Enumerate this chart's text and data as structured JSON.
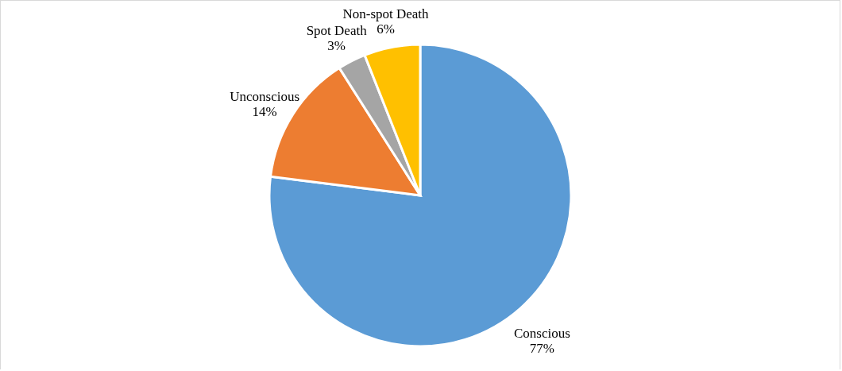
{
  "chart_data": {
    "type": "pie",
    "categories": [
      "Conscious",
      "Unconscious",
      "Spot Death",
      "Non-spot Death"
    ],
    "values": [
      77,
      14,
      3,
      6
    ],
    "colors": [
      "#5b9bd5",
      "#ed7d31",
      "#a5a5a5",
      "#ffc000"
    ],
    "value_labels": [
      "77%",
      "14%",
      "3%",
      "6%"
    ],
    "legend": false
  }
}
